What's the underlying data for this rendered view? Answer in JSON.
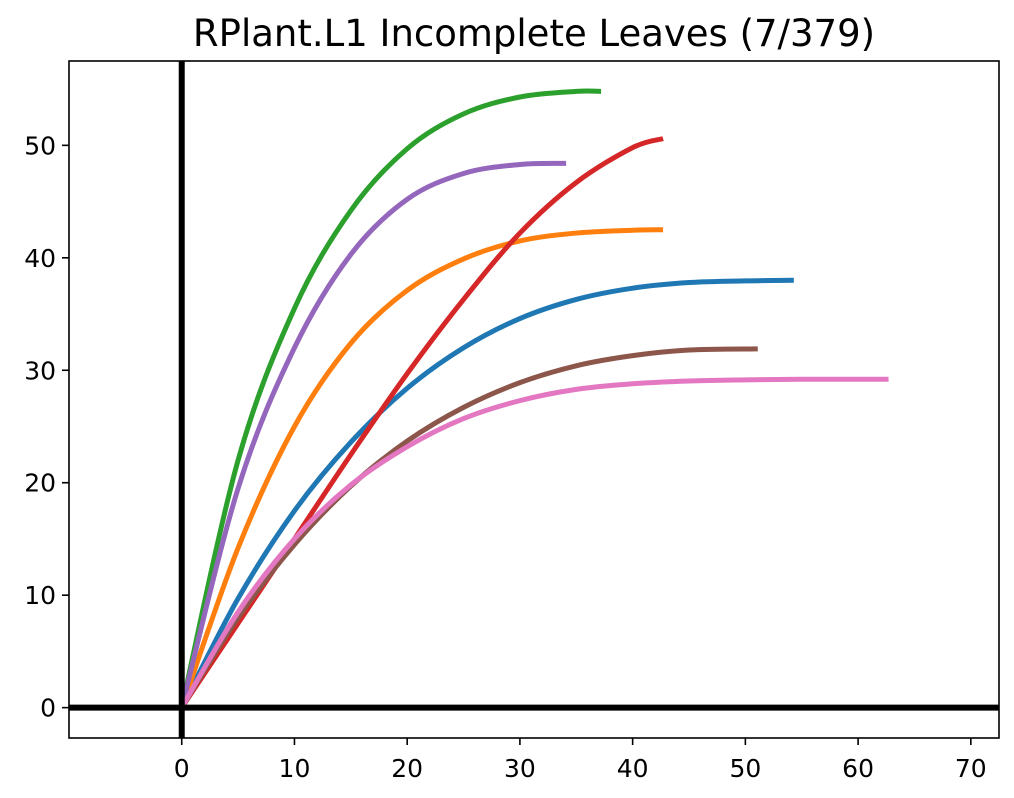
{
  "chart_data": {
    "type": "line",
    "title": "RPlant.L1 Incomplete Leaves (7/379)",
    "xlabel": "",
    "ylabel": "",
    "xlim": [
      -10,
      72.5
    ],
    "ylim": [
      -2.7,
      57.5
    ],
    "xticks": [
      0,
      10,
      20,
      30,
      40,
      50,
      60,
      70
    ],
    "yticks": [
      0,
      10,
      20,
      30,
      40,
      50
    ],
    "grid": false,
    "reference_lines": {
      "x": 0,
      "y": 0,
      "color": "#000000"
    },
    "series": [
      {
        "color": "#1f77b4",
        "x": [
          0,
          5,
          10,
          15,
          20,
          25,
          30,
          35,
          40,
          45,
          50,
          54.3
        ],
        "y": [
          0,
          9.7,
          17.5,
          23.6,
          28.4,
          32.0,
          34.6,
          36.3,
          37.3,
          37.8,
          37.95,
          38.0
        ]
      },
      {
        "color": "#ff7f0e",
        "x": [
          0,
          5,
          10,
          15,
          20,
          25,
          30,
          35,
          40,
          42.7
        ],
        "y": [
          0,
          14.2,
          25.0,
          32.4,
          37.1,
          39.9,
          41.5,
          42.2,
          42.45,
          42.5
        ]
      },
      {
        "color": "#2ca02c",
        "x": [
          0,
          5,
          10,
          15,
          20,
          25,
          30,
          35,
          37.2
        ],
        "y": [
          0,
          22.0,
          35.5,
          44.2,
          49.7,
          52.8,
          54.3,
          54.8,
          54.8
        ]
      },
      {
        "color": "#d62728",
        "x": [
          0,
          5,
          10,
          15,
          20,
          25,
          30,
          35,
          40,
          42.7
        ],
        "y": [
          0,
          7.5,
          15.0,
          22.5,
          29.7,
          36.3,
          42.2,
          46.7,
          49.8,
          50.6
        ]
      },
      {
        "color": "#9467bd",
        "x": [
          0,
          5,
          10,
          15,
          20,
          25,
          30,
          34.1
        ],
        "y": [
          0,
          19.5,
          32.0,
          40.3,
          45.2,
          47.5,
          48.3,
          48.4
        ]
      },
      {
        "color": "#8c564b",
        "x": [
          0,
          5,
          10,
          15,
          20,
          25,
          30,
          35,
          40,
          45,
          51.1
        ],
        "y": [
          0,
          8.0,
          14.5,
          19.7,
          23.7,
          26.7,
          28.9,
          30.4,
          31.3,
          31.8,
          31.9
        ]
      },
      {
        "color": "#e377c2",
        "x": [
          0,
          5,
          10,
          15,
          20,
          25,
          30,
          35,
          40,
          45,
          50,
          55,
          62.7
        ],
        "y": [
          0,
          8.5,
          15.0,
          19.8,
          23.2,
          25.7,
          27.3,
          28.3,
          28.8,
          29.05,
          29.15,
          29.2,
          29.2
        ]
      }
    ]
  }
}
